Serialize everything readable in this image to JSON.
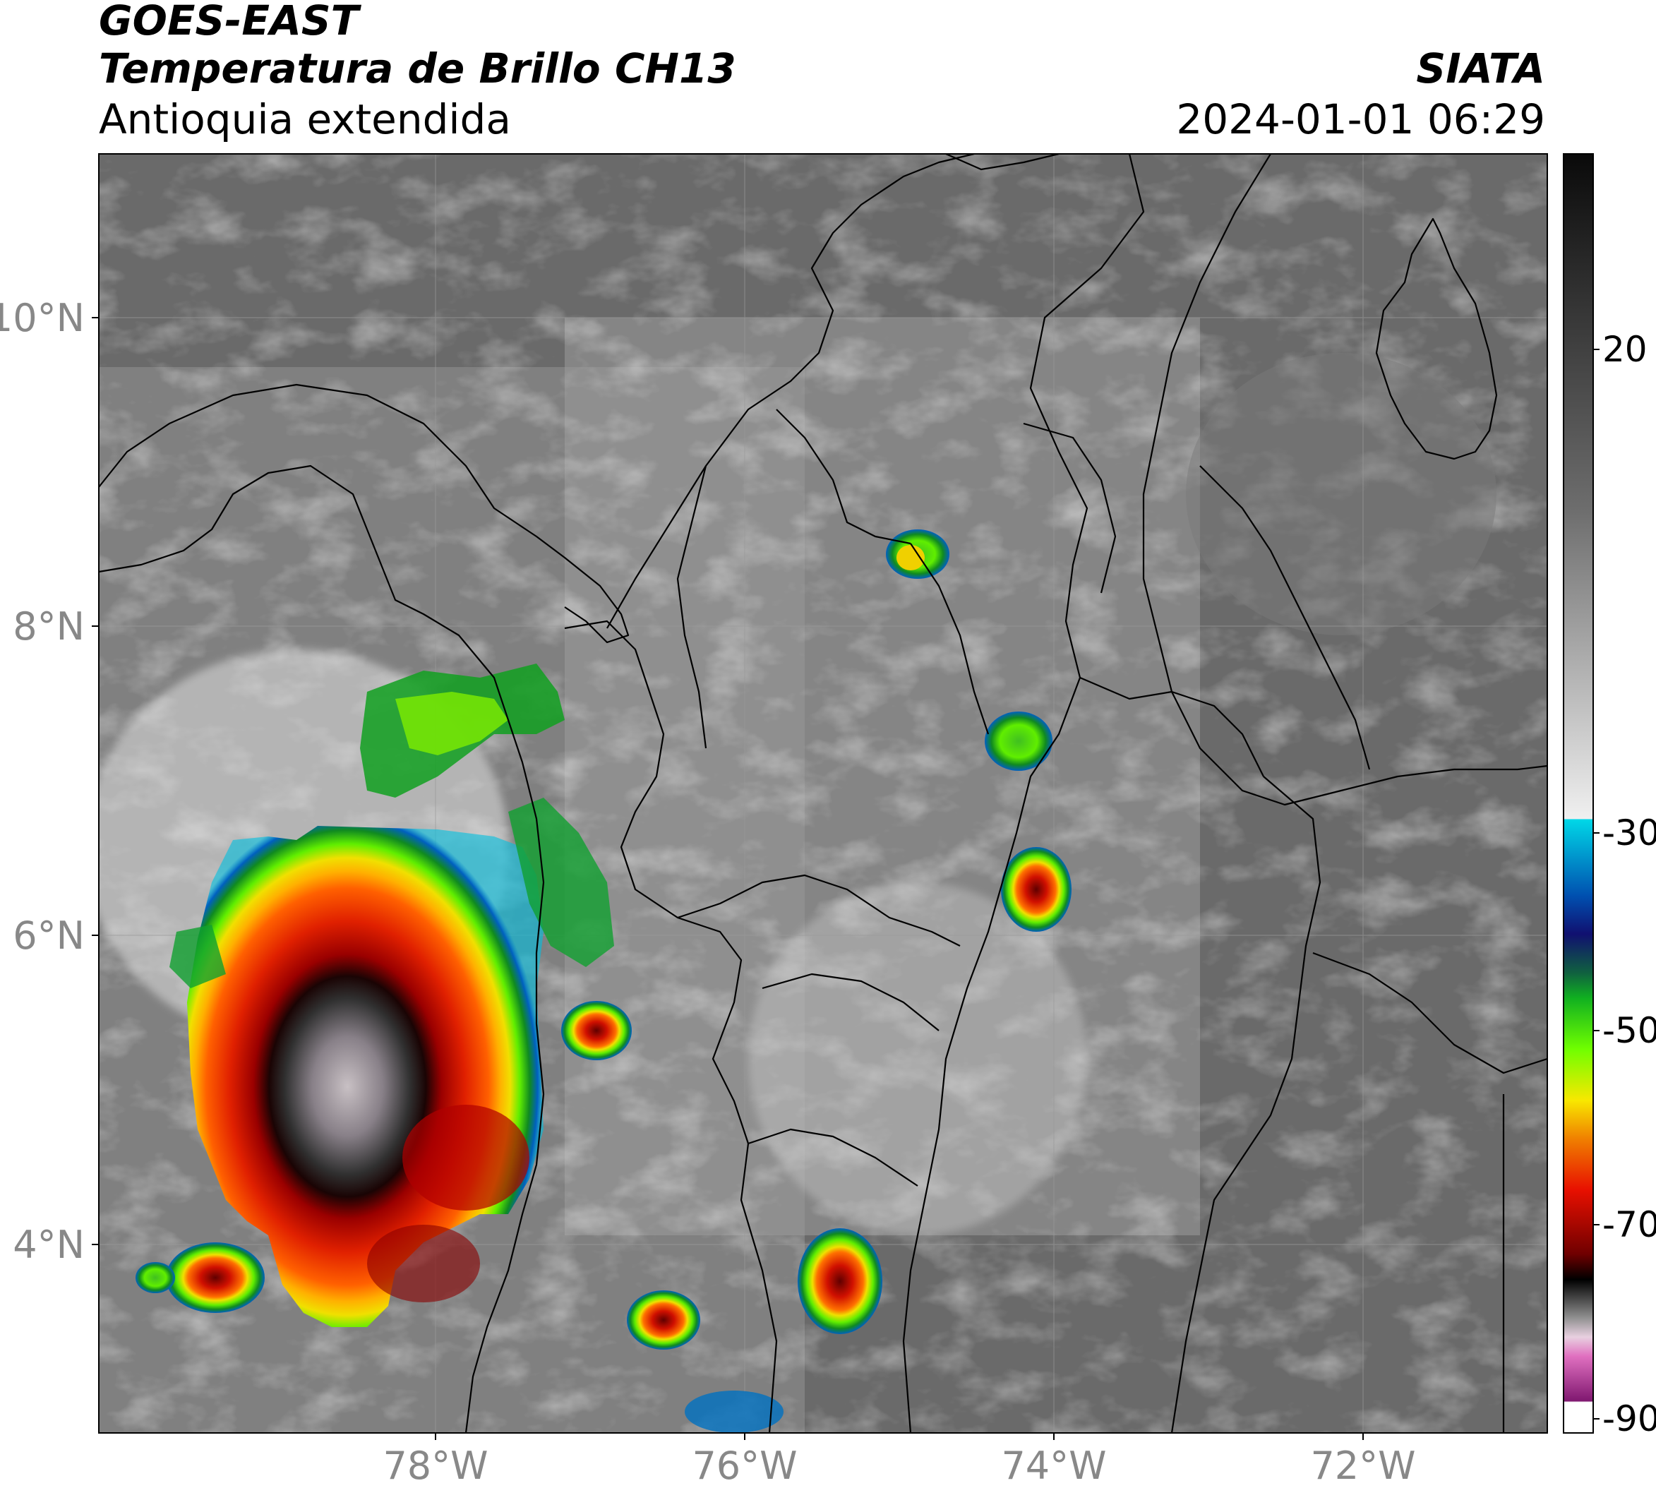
{
  "header": {
    "line1": "GOES-EAST",
    "line2": "Temperatura de Brillo CH13",
    "line3": "Antioquia extendida",
    "brand": "SIATA",
    "datetime": "2024-01-01 06:29"
  },
  "axes": {
    "lat_labels": [
      "10°N",
      "8°N",
      "6°N",
      "4°N"
    ],
    "lon_labels": [
      "78°W",
      "76°W",
      "74°W",
      "72°W"
    ]
  },
  "colorbar": {
    "ticks": [
      "20",
      "-30",
      "-50",
      "-70",
      "-90"
    ],
    "colors": {
      "gray_top": "#0a0a0a",
      "gray_mid": "#6e6e6e",
      "gray_light": "#f0f0f0",
      "cyan": "#00d8e8",
      "blue": "#0050b0",
      "navy": "#101070",
      "green": "#10b020",
      "lime": "#70ff00",
      "yellow": "#f8e800",
      "orange": "#f08000",
      "red": "#e81000",
      "darkred": "#700000",
      "black": "#000000",
      "pink": "#e070c0",
      "purple": "#801870",
      "white": "#ffffff"
    }
  },
  "legend": {
    "storm_colors": [
      "#303030",
      "#9a0000",
      "#e02000",
      "#ff8800",
      "#f0e000",
      "#60ee00",
      "#108a20",
      "#0060c0",
      "#00c0e0"
    ]
  }
}
